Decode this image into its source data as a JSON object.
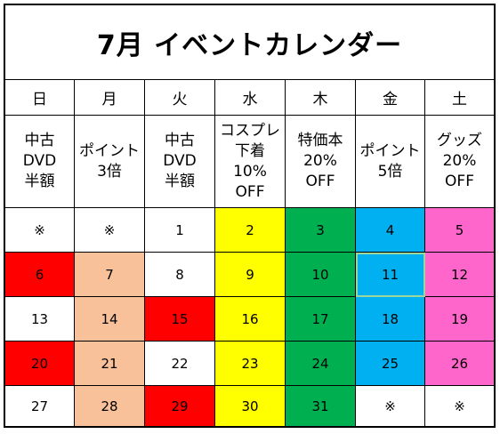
{
  "title": "7月 イベントカレンダー",
  "weekdays": [
    "日",
    "月",
    "火",
    "水",
    "木",
    "金",
    "土"
  ],
  "events": [
    "中古\nDVD\n半額",
    "ポイント\n3倍",
    "中古\nDVD\n半額",
    "コスプレ\n下着\n10%\nOFF",
    "特価本\n20%\nOFF",
    "ポイント\n5倍",
    "グッズ\n20%\nOFF"
  ],
  "weeks": [
    [
      "※",
      "※",
      "1",
      "2",
      "3",
      "4",
      "5"
    ],
    [
      "6",
      "7",
      "8",
      "9",
      "10",
      "11",
      "12"
    ],
    [
      "13",
      "14",
      "15",
      "16",
      "17",
      "18",
      "19"
    ],
    [
      "20",
      "21",
      "22",
      "23",
      "24",
      "25",
      "26"
    ],
    [
      "27",
      "28",
      "29",
      "30",
      "31",
      "※",
      "※"
    ]
  ],
  "colors": {
    "white": "#ffffff",
    "red": "#ff0000",
    "peach": "#f8c19a",
    "yellow": "#ffff00",
    "green": "#00b050",
    "blue": "#00b0f0",
    "pink": "#ff66cc"
  },
  "cell_colors": [
    [
      "white",
      "white",
      "white",
      "yellow",
      "green",
      "blue",
      "pink"
    ],
    [
      "red",
      "peach",
      "white",
      "yellow",
      "green",
      "blue",
      "pink"
    ],
    [
      "white",
      "peach",
      "red",
      "yellow",
      "green",
      "blue",
      "pink"
    ],
    [
      "red",
      "peach",
      "white",
      "yellow",
      "green",
      "blue",
      "pink"
    ],
    [
      "white",
      "peach",
      "red",
      "yellow",
      "green",
      "white",
      "white"
    ]
  ],
  "selected_cell": "11"
}
